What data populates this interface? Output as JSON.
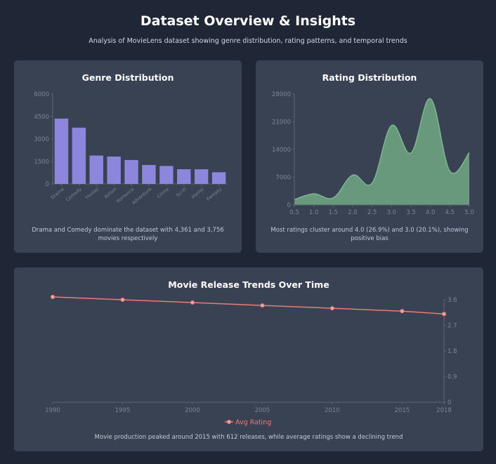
{
  "header": {
    "title": "Dataset Overview & Insights",
    "subtitle": "Analysis of MovieLens dataset showing genre distribution, rating patterns, and temporal trends"
  },
  "colors": {
    "background": "#1f2736",
    "card": "#394253",
    "bar": "#8c86dc",
    "area_fill": "#6a9e80",
    "area_stroke": "#7db691",
    "line": "#ec7a78"
  },
  "genre_card": {
    "caption": "Drama and Comedy dominate the dataset with 4,361 and 3,756 movies respectively"
  },
  "rating_card": {
    "caption": "Most ratings cluster around 4.0 (26.9%) and 3.0 (20.1%), showing positive bias"
  },
  "trend_card": {
    "caption": "Movie production peaked around 2015 with 612 releases, while average ratings show a declining trend"
  },
  "chart_data": [
    {
      "type": "bar",
      "title": "Genre Distribution",
      "categories": [
        "Drama",
        "Comedy",
        "Thriller",
        "Action",
        "Romance",
        "Adventure",
        "Crime",
        "Sci-Fi",
        "Horror",
        "Fantasy"
      ],
      "values": [
        4361,
        3756,
        1894,
        1828,
        1596,
        1263,
        1199,
        980,
        978,
        779
      ],
      "ylim": [
        0,
        6000
      ],
      "yticks": [
        0,
        1500,
        3000,
        4500,
        6000
      ],
      "grid": false
    },
    {
      "type": "area",
      "title": "Rating Distribution",
      "x": [
        0.5,
        1.0,
        1.5,
        2.0,
        2.5,
        3.0,
        3.5,
        4.0,
        4.5,
        5.0
      ],
      "values": [
        1370,
        2811,
        1791,
        7551,
        5550,
        20047,
        13136,
        26818,
        8551,
        13211
      ],
      "xticks": [
        "0.5",
        "1.0",
        "1.5",
        "2.0",
        "2.5",
        "3.0",
        "3.5",
        "4.0",
        "4.5",
        "5.0"
      ],
      "ylim": [
        0,
        28000
      ],
      "yticks": [
        0,
        7000,
        14000,
        21000,
        28000
      ],
      "grid": false
    },
    {
      "type": "line",
      "title": "Movie Release Trends Over Time",
      "x": [
        1990,
        1995,
        2000,
        2005,
        2010,
        2015,
        2018
      ],
      "series": [
        {
          "name": "Avg Rating",
          "values": [
            3.7,
            3.6,
            3.5,
            3.4,
            3.3,
            3.2,
            3.1
          ]
        }
      ],
      "xticks": [
        "1990",
        "1995",
        "2000",
        "2005",
        "2010",
        "2015",
        "2018"
      ],
      "ylim": [
        0,
        3.6
      ],
      "yticks": [
        "0",
        "0.9",
        "1.8",
        "2.7",
        "3.6"
      ],
      "y_axis_side": "right",
      "legend": "bottom-center",
      "grid": false
    }
  ]
}
